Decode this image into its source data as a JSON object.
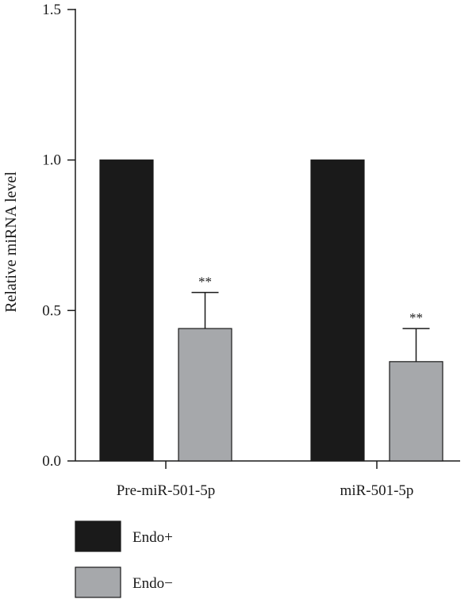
{
  "chart_data": {
    "type": "bar",
    "title": "",
    "xlabel": "",
    "ylabel": "Relative miRNA level",
    "ylim": [
      0,
      1.5
    ],
    "yticks": [
      "0.0",
      "0.5",
      "1.0",
      "1.5"
    ],
    "categories": [
      "Pre-miR-501-5p",
      "miR-501-5p"
    ],
    "series": [
      {
        "name": "Endo+",
        "color": "#1a1a1a",
        "values": [
          1.0,
          1.0
        ],
        "errors": [
          0,
          0
        ]
      },
      {
        "name": "Endo−",
        "color": "#a6a8ab",
        "values": [
          0.44,
          0.33
        ],
        "errors": [
          0.12,
          0.11
        ]
      }
    ],
    "annotations": [
      "**",
      "**"
    ],
    "legend_position": "bottom-left",
    "grid": false
  }
}
